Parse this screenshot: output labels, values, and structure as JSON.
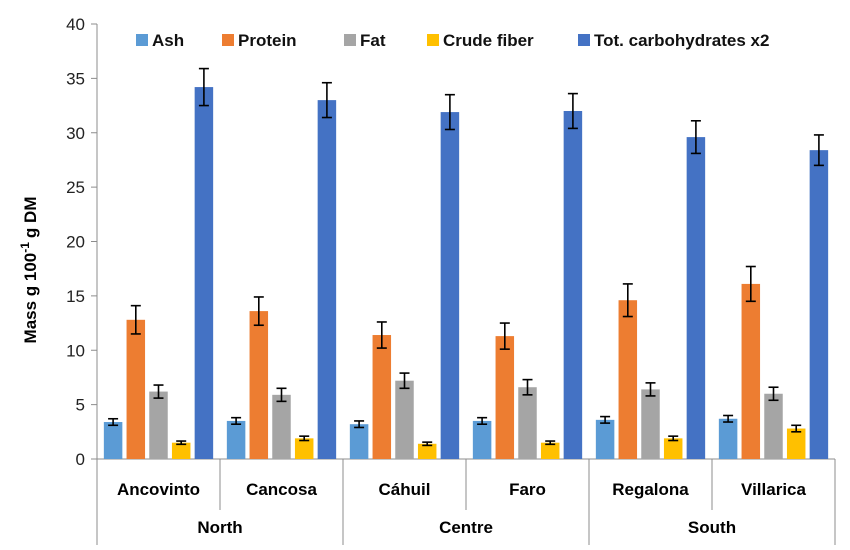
{
  "chart_data": {
    "type": "bar",
    "ylabel": "Mass g 100",
    "ylabel_sup": "-1",
    "ylabel_suffix": "g DM",
    "ylim": [
      0,
      40
    ],
    "yticks": [
      "0",
      "5",
      "10",
      "15",
      "20",
      "25",
      "30",
      "35",
      "40"
    ],
    "categories": [
      "Ancovinto",
      "Cancosa",
      "Cáhuil",
      "Faro",
      "Regalona",
      "Villarica"
    ],
    "groups": [
      {
        "label": "North",
        "categories": [
          "Ancovinto",
          "Cancosa"
        ]
      },
      {
        "label": "Centre",
        "categories": [
          "Cáhuil",
          "Faro"
        ]
      },
      {
        "label": "South",
        "categories": [
          "Regalona",
          "Villarica"
        ]
      }
    ],
    "legend_position": "top",
    "grid": false,
    "error_bars": true,
    "series": [
      {
        "name": "Ash",
        "color": "#5B9BD5",
        "values": [
          3.4,
          3.5,
          3.2,
          3.5,
          3.6,
          3.7
        ],
        "errors": [
          0.3,
          0.3,
          0.3,
          0.3,
          0.3,
          0.3
        ]
      },
      {
        "name": "Protein",
        "color": "#ED7D31",
        "values": [
          12.8,
          13.6,
          11.4,
          11.3,
          14.6,
          16.1
        ],
        "errors": [
          1.3,
          1.3,
          1.2,
          1.2,
          1.5,
          1.6
        ]
      },
      {
        "name": "Fat",
        "color": "#A5A5A5",
        "values": [
          6.2,
          5.9,
          7.2,
          6.6,
          6.4,
          6.0
        ],
        "errors": [
          0.6,
          0.6,
          0.7,
          0.7,
          0.6,
          0.6
        ]
      },
      {
        "name": "Crude fiber",
        "color": "#FFC000",
        "values": [
          1.5,
          1.9,
          1.4,
          1.5,
          1.9,
          2.8
        ],
        "errors": [
          0.15,
          0.2,
          0.15,
          0.15,
          0.2,
          0.3
        ]
      },
      {
        "name": "Tot. carbohydrates x2",
        "color": "#4472C4",
        "values": [
          34.2,
          33.0,
          31.9,
          32.0,
          29.6,
          28.4
        ],
        "errors": [
          1.7,
          1.6,
          1.6,
          1.6,
          1.5,
          1.4
        ]
      }
    ]
  }
}
